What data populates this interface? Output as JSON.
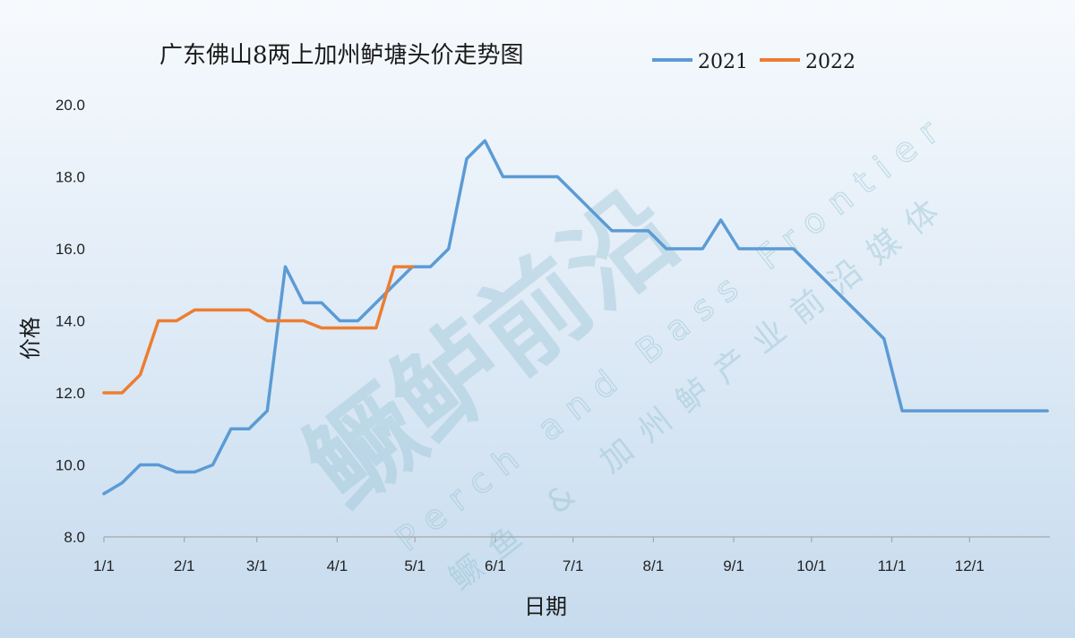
{
  "chart_data": {
    "type": "line",
    "title": "广东佛山8两上加州鲈塘头价走势图",
    "xlabel": "日期",
    "ylabel": "价格",
    "ylim": [
      8.0,
      20.0
    ],
    "yticks": [
      "8.0",
      "10.0",
      "12.0",
      "14.0",
      "16.0",
      "18.0",
      "20.0"
    ],
    "xticks": [
      "1/1",
      "2/1",
      "3/1",
      "4/1",
      "5/1",
      "6/1",
      "7/1",
      "8/1",
      "9/1",
      "10/1",
      "11/1",
      "12/1"
    ],
    "xtick_days": [
      1,
      32,
      60,
      91,
      121,
      152,
      182,
      213,
      244,
      274,
      305,
      335
    ],
    "x_range_days": [
      1,
      366
    ],
    "grid": false,
    "legend_position": "top-right",
    "series": [
      {
        "name": "2021",
        "color": "#5b9bd5",
        "x_days": [
          1,
          8,
          15,
          22,
          29,
          36,
          43,
          50,
          57,
          64,
          71,
          78,
          85,
          92,
          99,
          106,
          113,
          120,
          127,
          134,
          141,
          148,
          155,
          162,
          169,
          176,
          183,
          190,
          197,
          204,
          211,
          218,
          225,
          232,
          239,
          246,
          253,
          260,
          267,
          274,
          281,
          288,
          295,
          302,
          309,
          316,
          323,
          330,
          337,
          344,
          351,
          358,
          365
        ],
        "values": [
          9.2,
          9.5,
          10.0,
          10.0,
          9.8,
          9.8,
          10.0,
          11.0,
          11.0,
          11.5,
          15.5,
          14.5,
          14.5,
          14.0,
          14.0,
          14.5,
          15.0,
          15.5,
          15.5,
          16.0,
          18.5,
          19.0,
          18.0,
          18.0,
          18.0,
          18.0,
          17.5,
          17.0,
          16.5,
          16.5,
          16.5,
          16.0,
          16.0,
          16.0,
          16.8,
          16.0,
          16.0,
          16.0,
          16.0,
          15.5,
          15.0,
          14.5,
          14.0,
          13.5,
          11.5,
          11.5,
          11.5,
          11.5,
          11.5,
          11.5,
          11.5,
          11.5,
          11.5
        ]
      },
      {
        "name": "2022",
        "color": "#ed7d31",
        "x_days": [
          1,
          8,
          15,
          22,
          29,
          36,
          43,
          50,
          57,
          64,
          71,
          78,
          85,
          92,
          99,
          106,
          113,
          120
        ],
        "values": [
          12.0,
          12.0,
          12.5,
          14.0,
          14.0,
          14.3,
          14.3,
          14.3,
          14.3,
          14.0,
          14.0,
          14.0,
          13.8,
          13.8,
          13.8,
          13.8,
          15.5,
          15.5
        ]
      }
    ]
  },
  "watermark": {
    "brand": "鳜鲈前沿",
    "english": "Perch and Bass Frontier",
    "chinese": "鳜鱼 & 加州鲈产业前沿媒体"
  }
}
